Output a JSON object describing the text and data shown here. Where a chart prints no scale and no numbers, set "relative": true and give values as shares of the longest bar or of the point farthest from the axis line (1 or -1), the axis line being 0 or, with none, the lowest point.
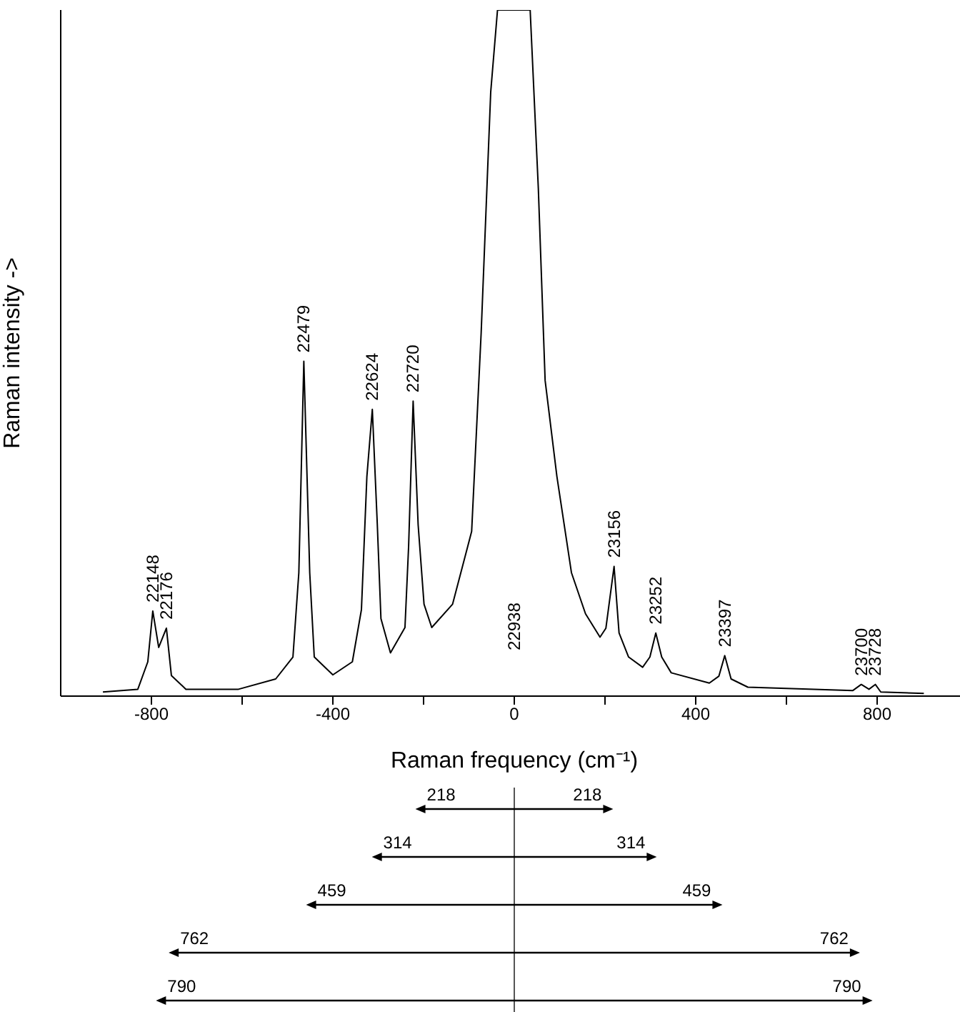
{
  "chart_data": {
    "type": "line",
    "relative": true,
    "xlabel": "Raman frequency (cm⁻¹)",
    "ylabel": "Raman intensity ->",
    "xlim": [
      -1000,
      1000
    ],
    "xticks": [
      -800,
      {
        "value": -600,
        "label": null
      },
      -400,
      {
        "value": -200,
        "label": null
      },
      0,
      {
        "value": 200,
        "label": null
      },
      400,
      {
        "value": 600,
        "label": null
      },
      800
    ],
    "x": [
      -907,
      -830,
      -808,
      -797,
      -784,
      -767,
      -756,
      -724,
      -608,
      -526,
      -488,
      -475,
      -464,
      -451,
      -441,
      -400,
      -357,
      -337,
      -325,
      -313,
      -302,
      -294,
      -273,
      -241,
      -233,
      -223,
      -212,
      -199,
      -182,
      -136,
      -94,
      -73,
      -52,
      -37,
      35,
      53,
      68,
      94,
      126,
      157,
      189,
      202,
      220,
      231,
      252,
      283,
      299,
      312,
      325,
      346,
      430,
      451,
      464,
      478,
      515,
      746,
      765,
      782,
      796,
      808,
      903
    ],
    "series": [
      {
        "color": "#000000",
        "values": [
          0.006,
          0.01,
          0.05,
          0.124,
          0.071,
          0.099,
          0.03,
          0.01,
          0.01,
          0.025,
          0.057,
          0.18,
          0.488,
          0.18,
          0.057,
          0.031,
          0.05,
          0.126,
          0.32,
          0.418,
          0.25,
          0.113,
          0.063,
          0.1,
          0.218,
          0.43,
          0.25,
          0.134,
          0.1,
          0.134,
          0.24,
          0.53,
          0.88,
          1,
          1,
          0.74,
          0.46,
          0.32,
          0.18,
          0.12,
          0.086,
          0.099,
          0.189,
          0.092,
          0.057,
          0.042,
          0.057,
          0.092,
          0.057,
          0.034,
          0.019,
          0.029,
          0.059,
          0.025,
          0.013,
          0.008,
          0.017,
          0.01,
          0.017,
          0.006,
          0.004
        ]
      }
    ],
    "marker": "none",
    "line_style": "solid",
    "annotations": [
      {
        "text": "22148",
        "x": -797,
        "y": 0.124
      },
      {
        "text": "22176",
        "x": -767,
        "y": 0.099
      },
      {
        "text": "22479",
        "x": -464,
        "y": 0.488
      },
      {
        "text": "22624",
        "x": -313,
        "y": 0.418
      },
      {
        "text": "22720",
        "x": -223,
        "y": 0.43
      },
      "22938",
      {
        "text": "23156",
        "x": 220,
        "y": 0.189
      },
      {
        "text": "23252",
        "x": 312,
        "y": 0.092
      },
      {
        "text": "23397",
        "x": 464,
        "y": 0.059
      },
      {
        "text": "23700",
        "x": 765,
        "y": 0.017
      },
      {
        "text": "23728",
        "x": 796,
        "y": 0.017
      },
      "218",
      "218",
      "314",
      "314",
      "459",
      "459",
      "762",
      "762",
      "790",
      "790"
    ]
  }
}
